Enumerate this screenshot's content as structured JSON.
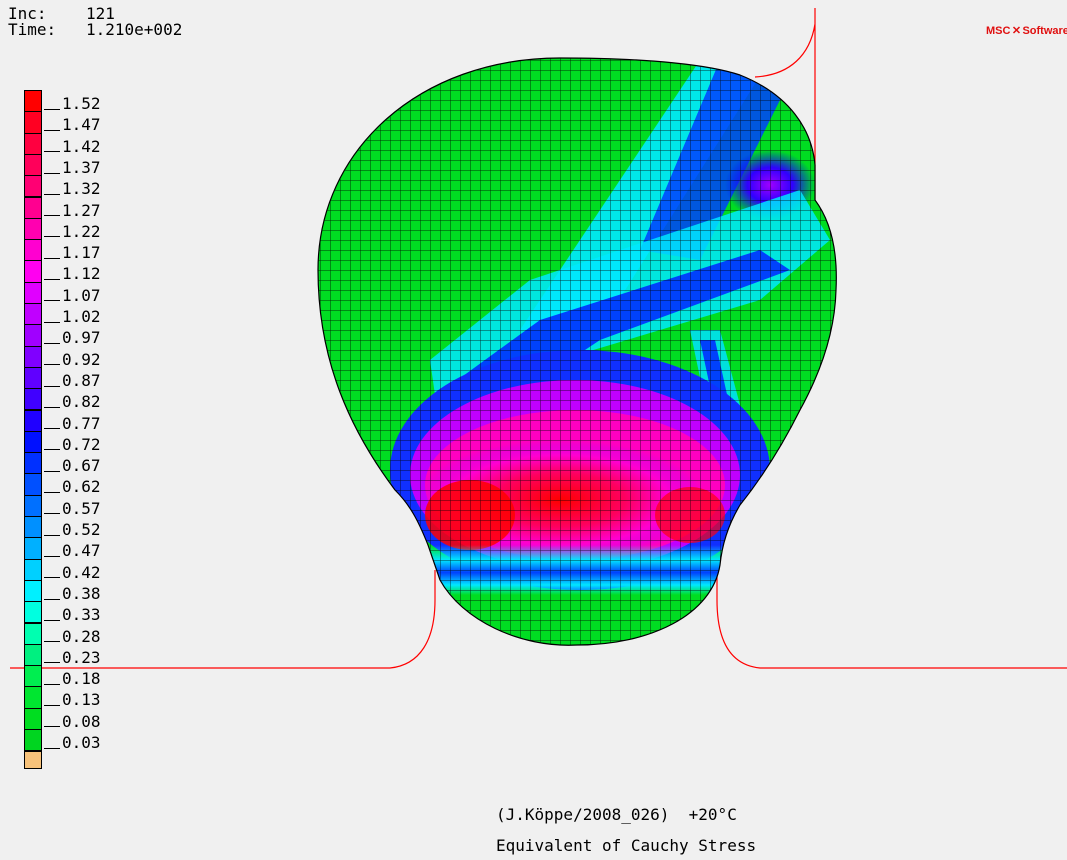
{
  "header": {
    "inc_label": "Inc:",
    "inc_value": "121",
    "time_label": "Time:",
    "time_value": "1.210e+002"
  },
  "logo": {
    "left": "MSC",
    "right": "Software"
  },
  "legend": {
    "labels": [
      "1.52",
      "1.47",
      "1.42",
      "1.37",
      "1.32",
      "1.27",
      "1.22",
      "1.17",
      "1.12",
      "1.07",
      "1.02",
      "0.97",
      "0.92",
      "0.87",
      "0.82",
      "0.77",
      "0.72",
      "0.67",
      "0.62",
      "0.57",
      "0.52",
      "0.47",
      "0.42",
      "0.38",
      "0.33",
      "0.28",
      "0.23",
      "0.18",
      "0.13",
      "0.08",
      "0.03"
    ],
    "colors": [
      "#ff0000",
      "#ff0022",
      "#ff0040",
      "#ff005a",
      "#ff0073",
      "#ff0090",
      "#ff00b0",
      "#ff00d0",
      "#ff00f0",
      "#e000ff",
      "#c000ff",
      "#a000ff",
      "#8000ff",
      "#6000ff",
      "#4000ff",
      "#2000ff",
      "#0010ff",
      "#0030ff",
      "#0050ff",
      "#0070ff",
      "#0090ff",
      "#00b0ff",
      "#00d0ff",
      "#00f0ff",
      "#00ffe0",
      "#00ffb0",
      "#00f080",
      "#00ee50",
      "#00e630",
      "#00dd20",
      "#00d520"
    ],
    "below_color": "#f7c27a"
  },
  "footer": {
    "line1": "(J.Köppe/2008_026)  +20°C",
    "line2": "Equivalent of Cauchy Stress"
  }
}
